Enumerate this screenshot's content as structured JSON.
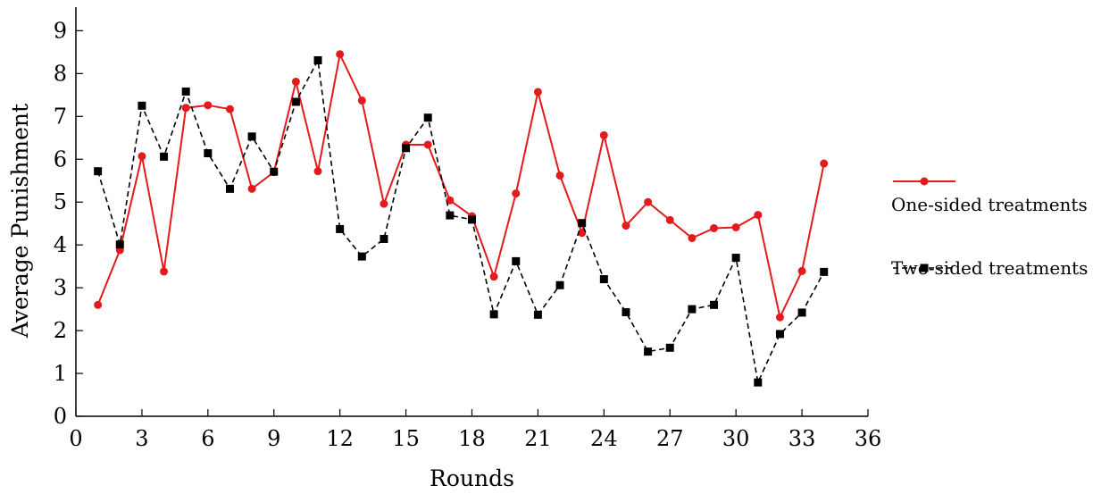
{
  "chart_data": {
    "type": "line",
    "title": "",
    "xlabel": "Rounds",
    "ylabel": "Average Punishment",
    "xlim": [
      0,
      36
    ],
    "ylim": [
      0,
      9
    ],
    "xticks": [
      0,
      3,
      6,
      9,
      12,
      15,
      18,
      21,
      24,
      27,
      30,
      33,
      36
    ],
    "yticks": [
      0,
      1,
      2,
      3,
      4,
      5,
      6,
      7,
      8,
      9
    ],
    "grid": false,
    "legend_position": "right",
    "series": [
      {
        "name": "One-sided treatments",
        "color": "#e41a1c",
        "line": "solid",
        "marker": "circle",
        "x": [
          1,
          2,
          3,
          4,
          5,
          6,
          7,
          8,
          9,
          10,
          11,
          12,
          13,
          14,
          15,
          16,
          17,
          18,
          19,
          20,
          21,
          22,
          23,
          24,
          25,
          26,
          27,
          28,
          29,
          30,
          31,
          32,
          33,
          34
        ],
        "y": [
          2.6,
          3.88,
          6.07,
          3.38,
          7.2,
          7.26,
          7.17,
          5.31,
          5.7,
          7.81,
          5.72,
          8.45,
          7.37,
          4.96,
          6.34,
          6.34,
          5.04,
          4.67,
          3.26,
          5.2,
          7.57,
          5.62,
          4.28,
          6.56,
          4.45,
          5.0,
          4.58,
          4.16,
          4.39,
          4.41,
          4.7,
          2.31,
          3.39,
          5.9
        ]
      },
      {
        "name": "Two-sided treatments",
        "color": "#000000",
        "line": "dashed",
        "marker": "square",
        "x": [
          1,
          2,
          3,
          4,
          5,
          6,
          7,
          8,
          9,
          10,
          11,
          12,
          13,
          14,
          15,
          16,
          17,
          18,
          19,
          20,
          21,
          22,
          23,
          24,
          25,
          26,
          27,
          28,
          29,
          30,
          31,
          32,
          33,
          34
        ],
        "y": [
          5.72,
          4.01,
          7.25,
          6.06,
          7.58,
          6.14,
          5.31,
          6.53,
          5.71,
          7.34,
          8.31,
          4.37,
          3.73,
          4.14,
          6.26,
          6.97,
          4.69,
          4.59,
          2.38,
          3.62,
          2.37,
          3.06,
          4.51,
          3.2,
          2.43,
          1.51,
          1.6,
          2.5,
          2.6,
          3.7,
          0.79,
          1.92,
          2.42,
          3.37
        ]
      }
    ]
  }
}
